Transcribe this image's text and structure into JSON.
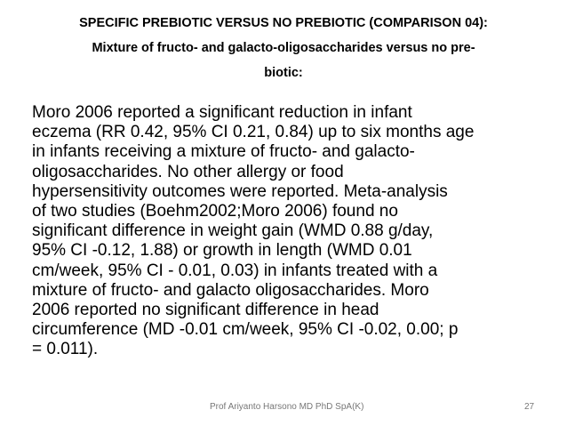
{
  "title": {
    "lines": [
      "SPECIFIC PREBIOTIC VERSUS NO PREBIOTIC (COMPARISON 04):",
      "Mixture of fructo- and galacto-oligosaccharides versus no pre-",
      "biotic:"
    ]
  },
  "body": {
    "lines": [
      "Moro 2006 reported a significant reduction in infant",
      "eczema (RR 0.42, 95% CI 0.21, 0.84) up to six months age",
      "in infants receiving a mixture of fructo- and galacto-",
      "oligosaccharides. No other allergy or food",
      "hypersensitivity outcomes were reported. Meta-analysis",
      "of two studies (Boehm2002;Moro 2006) found no",
      "significant difference in weight gain (WMD 0.88 g/day,",
      "95% CI -0.12, 1.88) or growth in length (WMD 0.01",
      "cm/week, 95% CI - 0.01, 0.03) in infants treated with a",
      "mixture of fructo- and galacto oligosaccharides. Moro",
      "2006 reported no significant difference in head",
      "circumference (MD -0.01 cm/week, 95% CI -0.02, 0.00; p",
      "= 0.011)."
    ]
  },
  "footer": {
    "author": "Prof Ariyanto Harsono MD PhD SpA(K)",
    "page": "27"
  }
}
